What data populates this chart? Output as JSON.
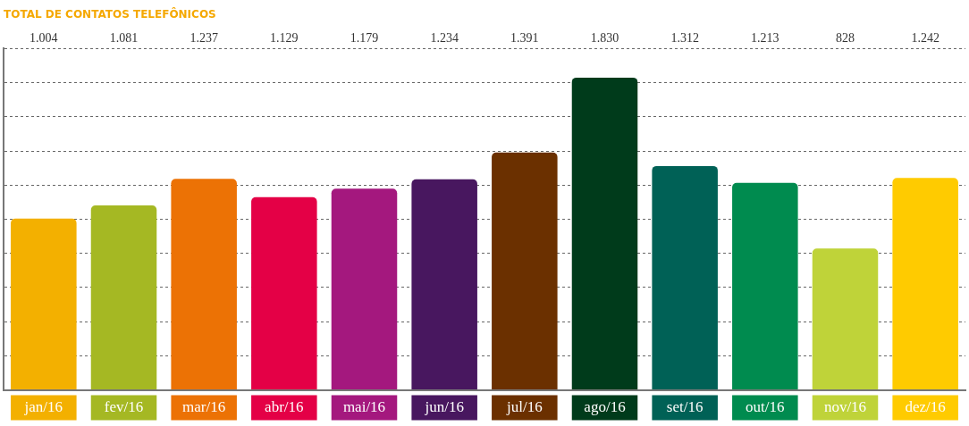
{
  "chart_data": {
    "type": "bar",
    "title": "TOTAL DE CONTATOS TELEFÔNICOS",
    "categories": [
      "jan/16",
      "fev/16",
      "mar/16",
      "abr/16",
      "mai/16",
      "jun/16",
      "jul/16",
      "ago/16",
      "set/16",
      "out/16",
      "nov/16",
      "dez/16"
    ],
    "values": [
      1004,
      1081,
      1237,
      1129,
      1179,
      1234,
      1391,
      1830,
      1312,
      1213,
      828,
      1242
    ],
    "value_labels": [
      "1.004",
      "1.081",
      "1.237",
      "1.129",
      "1.179",
      "1.234",
      "1.391",
      "1.830",
      "1.312",
      "1.213",
      "828",
      "1.242"
    ],
    "colors": [
      "#f3b000",
      "#a5b823",
      "#ec7205",
      "#e40046",
      "#a4187e",
      "#48175f",
      "#6b3000",
      "#003b1b",
      "#006156",
      "#008b4f",
      "#bfd339",
      "#ffcb00"
    ],
    "grid": "y",
    "legend": false,
    "tick_labels": "x"
  }
}
